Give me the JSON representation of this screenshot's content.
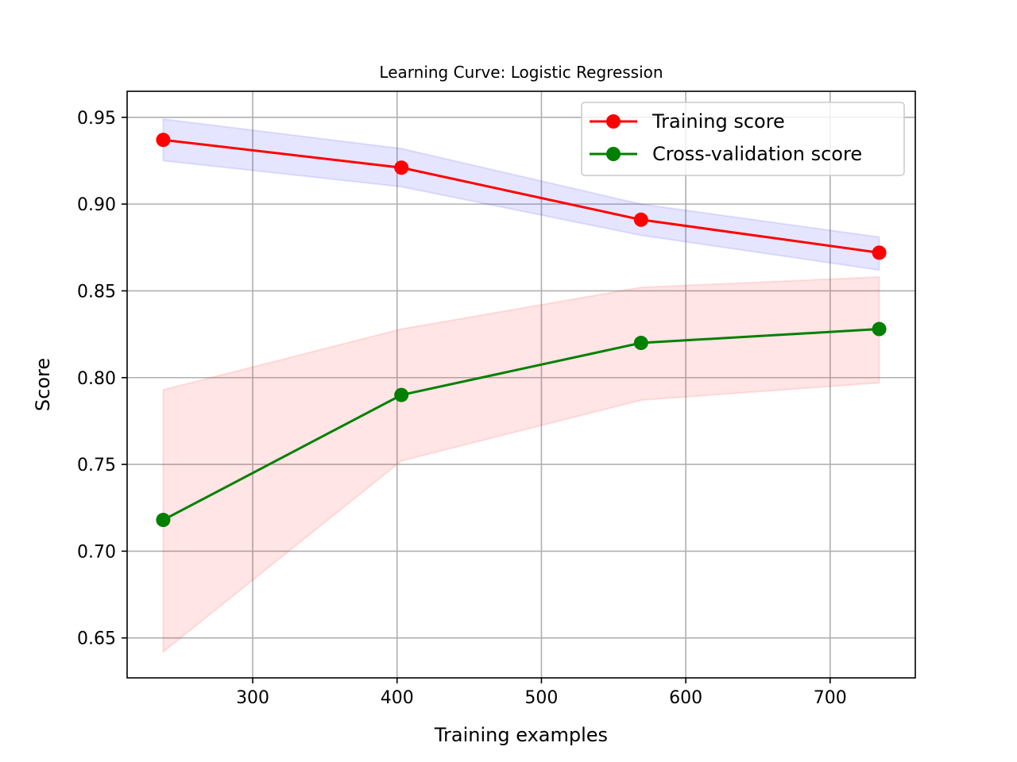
{
  "chart_data": {
    "type": "line",
    "title": "Learning Curve: Logistic Regression",
    "xlabel": "Training examples",
    "ylabel": "Score",
    "xlim": [
      213,
      759
    ],
    "ylim": [
      0.627,
      0.965
    ],
    "xticks": [
      300,
      400,
      500,
      600,
      700
    ],
    "xtick_labels": [
      "300",
      "400",
      "500",
      "600",
      "700"
    ],
    "yticks": [
      0.65,
      0.7,
      0.75,
      0.8,
      0.85,
      0.9,
      0.95
    ],
    "ytick_labels": [
      "0.65",
      "0.70",
      "0.75",
      "0.80",
      "0.85",
      "0.90",
      "0.95"
    ],
    "grid": true,
    "legend_position": "top-right",
    "x": [
      238,
      403,
      569,
      734
    ],
    "series": [
      {
        "name": "Training score",
        "color": "#ff0000",
        "band_color": "#0000ff",
        "values": [
          0.937,
          0.921,
          0.891,
          0.872
        ],
        "band_lower": [
          0.925,
          0.91,
          0.882,
          0.862
        ],
        "band_upper": [
          0.949,
          0.932,
          0.9,
          0.881
        ]
      },
      {
        "name": "Cross-validation score",
        "color": "#008000",
        "band_color": "#ff0000",
        "values": [
          0.718,
          0.79,
          0.82,
          0.828
        ],
        "band_lower": [
          0.642,
          0.752,
          0.787,
          0.797
        ],
        "band_upper": [
          0.793,
          0.828,
          0.852,
          0.858
        ]
      }
    ]
  }
}
